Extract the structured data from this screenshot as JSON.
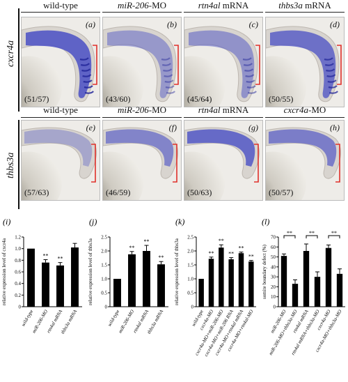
{
  "row1": {
    "gene": "cxcr4a",
    "headers": [
      {
        "pre": "wild-type",
        "it": "",
        "post": ""
      },
      {
        "pre": "",
        "it": "miR-206",
        "post": "-MO"
      },
      {
        "pre": "",
        "it": "rtn4al",
        "post": " mRNA"
      },
      {
        "pre": "",
        "it": "thbs3a",
        "post": " mRNA"
      }
    ],
    "panels": [
      {
        "letter": "(a)",
        "count": "(51/57)"
      },
      {
        "letter": "(b)",
        "count": "(43/60)"
      },
      {
        "letter": "(c)",
        "count": "(45/64)"
      },
      {
        "letter": "(d)",
        "count": "(50/55)"
      }
    ]
  },
  "row2": {
    "gene": "thbs3a",
    "headers": [
      {
        "pre": "wild-type",
        "it": "",
        "post": ""
      },
      {
        "pre": "",
        "it": "miR-206",
        "post": "-MO"
      },
      {
        "pre": "",
        "it": "rtn4al",
        "post": " mRNA"
      },
      {
        "pre": "",
        "it": "cxcr4a",
        "post": "-MO"
      }
    ],
    "panels": [
      {
        "letter": "(e)",
        "count": "(57/63)"
      },
      {
        "letter": "(f)",
        "count": "(46/59)"
      },
      {
        "letter": "(g)",
        "count": "(50/63)"
      },
      {
        "letter": "(h)",
        "count": "(50/57)"
      }
    ]
  },
  "colors": {
    "stain": "#4a4fc4",
    "bracket": "#e0302a",
    "bar": "#000000"
  },
  "chart_data": [
    {
      "type": "bar",
      "letter": "(i)",
      "ylabel": "relative expression level of cxcr4a",
      "ylim": [
        0,
        1.2
      ],
      "yticks": [
        "0",
        "0.2",
        "0.4",
        "0.6",
        "0.8",
        "1.0",
        "1.2"
      ],
      "categories": [
        "wild-type",
        "miR-206-MO",
        "rtn4al mRNA",
        "thbs3a mRNA"
      ],
      "values": [
        1.0,
        0.76,
        0.71,
        1.02
      ],
      "errors": [
        0.0,
        0.05,
        0.05,
        0.07
      ],
      "stars": [
        "",
        "**",
        "**",
        ""
      ]
    },
    {
      "type": "bar",
      "letter": "(j)",
      "ylabel": "relative expression level of thbs3a",
      "ylim": [
        0,
        2.5
      ],
      "yticks": [
        "0",
        "0.5",
        "1.0",
        "1.5",
        "2.0",
        "2.5"
      ],
      "categories": [
        "wild-type",
        "miR-206-MO",
        "rtn4al mRNA",
        "thbs3a mRNA"
      ],
      "values": [
        1.0,
        1.88,
        2.0,
        1.52
      ],
      "errors": [
        0.0,
        0.1,
        0.2,
        0.1
      ],
      "stars": [
        "",
        "**",
        "**",
        "**"
      ]
    },
    {
      "type": "bar",
      "letter": "(k)",
      "ylabel": "relative expression level of thbs3a",
      "ylim": [
        0,
        2.5
      ],
      "yticks": [
        "0",
        "0.5",
        "1.0",
        "1.5",
        "2.0",
        "2.5"
      ],
      "categories": [
        "wild-type",
        "cxcr4a-MO",
        "cxcr4a-MO+miR-206-MO",
        "cxcr4a-MO+miR-206 RNA",
        "cxcr4a-MO+rtn4al mRNA",
        "cxcr4a-MO+rtn4al-MO"
      ],
      "values": [
        1.0,
        1.72,
        2.12,
        1.7,
        1.92,
        1.62
      ],
      "errors": [
        0.0,
        0.06,
        0.1,
        0.06,
        0.04,
        0.04
      ],
      "stars": [
        "",
        "**",
        "**",
        "**",
        "**",
        "**"
      ]
    },
    {
      "type": "bar",
      "letter": "(l)",
      "ylabel": "somite boundary defect (%)",
      "ylim": [
        0,
        70
      ],
      "yticks": [
        "0",
        "10",
        "20",
        "30",
        "40",
        "50",
        "60",
        "70"
      ],
      "categories": [
        "miR-206-MO",
        "miR-206-MO+thbs3a-MO",
        "rtn4al mRNA",
        "rtn4al mRNA+thbs3a-MO",
        "cxcr4a-MO",
        "cxcr4a-MO+thbs3a-MO"
      ],
      "values": [
        51,
        23,
        56,
        30,
        59,
        33
      ],
      "errors": [
        2,
        4,
        7,
        5,
        3,
        5
      ],
      "brackets": [
        [
          0,
          1
        ],
        [
          2,
          3
        ],
        [
          4,
          5
        ]
      ],
      "bracket_label": "**"
    }
  ]
}
